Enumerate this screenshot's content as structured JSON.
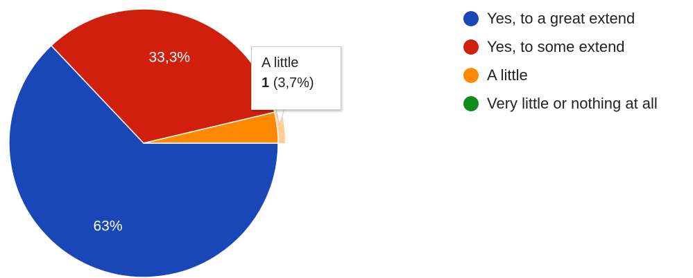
{
  "chart_data": {
    "type": "pie",
    "categories": [
      "Yes, to a great extend",
      "Yes, to some extend",
      "A little",
      "Very little or nothing at all"
    ],
    "values": [
      17,
      9,
      1,
      0
    ],
    "slice_labels": [
      "63%",
      "33,3%",
      "",
      ""
    ],
    "colors": [
      "#1a47b8",
      "#d11f0d",
      "#ff8a00",
      "#118c1b"
    ],
    "highlight_color": "#ffcf99",
    "legend_position": "right",
    "tooltip": {
      "title": "A little",
      "count": "1",
      "percent": "(3,7%)"
    }
  }
}
